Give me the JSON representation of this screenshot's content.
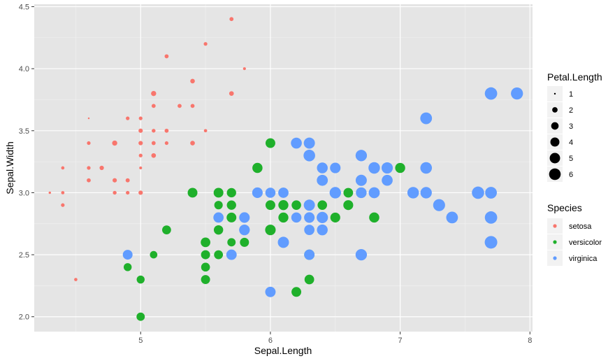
{
  "chart_data": {
    "type": "scatter",
    "xlabel": "Sepal.Length",
    "ylabel": "Sepal.Width",
    "xlim": [
      4.18,
      8.02
    ],
    "ylim": [
      1.88,
      4.52
    ],
    "x_ticks": [
      5,
      6,
      7,
      8
    ],
    "x_tick_labels": [
      "5",
      "6",
      "7",
      "8"
    ],
    "y_ticks": [
      2.0,
      2.5,
      3.0,
      3.5,
      4.0,
      4.5
    ],
    "y_tick_labels": [
      "2.0",
      "2.5",
      "3.0",
      "3.5",
      "4.0",
      "4.5"
    ],
    "grid": true,
    "background": "#e5e5e5",
    "size_legend": {
      "title": "Petal.Length",
      "values": [
        1,
        2,
        3,
        4,
        5,
        6
      ],
      "labels": [
        "1",
        "2",
        "3",
        "4",
        "5",
        "6"
      ]
    },
    "color_legend": {
      "title": "Species",
      "placement": "right"
    },
    "series": [
      {
        "name": "setosa",
        "color": "#f8766d",
        "x": [
          5.1,
          4.9,
          4.7,
          4.6,
          5.0,
          5.4,
          4.6,
          5.0,
          4.4,
          4.9,
          5.4,
          4.8,
          4.8,
          4.3,
          5.8,
          5.7,
          5.4,
          5.1,
          5.7,
          5.1,
          5.4,
          5.1,
          4.6,
          5.1,
          4.8,
          5.0,
          5.0,
          5.2,
          5.2,
          4.7,
          4.8,
          5.4,
          5.2,
          5.5,
          4.9,
          5.0,
          5.5,
          4.9,
          4.4,
          5.1,
          5.0,
          4.5,
          4.4,
          5.0,
          5.1,
          4.8,
          5.1,
          4.6,
          5.3,
          5.0
        ],
        "y": [
          3.5,
          3.0,
          3.2,
          3.1,
          3.6,
          3.9,
          3.4,
          3.4,
          2.9,
          3.1,
          3.7,
          3.4,
          3.0,
          3.0,
          4.0,
          4.4,
          3.9,
          3.5,
          3.8,
          3.8,
          3.4,
          3.7,
          3.6,
          3.3,
          3.4,
          3.0,
          3.4,
          3.5,
          3.4,
          3.2,
          3.1,
          3.4,
          4.1,
          4.2,
          3.1,
          3.2,
          3.5,
          3.6,
          3.0,
          3.4,
          3.5,
          2.3,
          3.2,
          3.5,
          3.8,
          3.0,
          3.8,
          3.2,
          3.7,
          3.3
        ],
        "size": [
          1.4,
          1.4,
          1.3,
          1.5,
          1.4,
          1.7,
          1.4,
          1.5,
          1.4,
          1.5,
          1.5,
          1.6,
          1.4,
          1.1,
          1.2,
          1.5,
          1.3,
          1.4,
          1.7,
          1.5,
          1.7,
          1.5,
          1.0,
          1.7,
          1.9,
          1.6,
          1.6,
          1.5,
          1.4,
          1.6,
          1.6,
          1.5,
          1.5,
          1.4,
          1.5,
          1.2,
          1.3,
          1.4,
          1.3,
          1.5,
          1.3,
          1.3,
          1.3,
          1.6,
          1.9,
          1.4,
          1.6,
          1.4,
          1.5,
          1.4
        ]
      },
      {
        "name": "versicolor",
        "color": "#1fb02b",
        "x": [
          7.0,
          6.4,
          6.9,
          5.5,
          6.5,
          5.7,
          6.3,
          4.9,
          6.6,
          5.2,
          5.0,
          5.9,
          6.0,
          6.1,
          5.6,
          6.7,
          5.6,
          5.8,
          6.2,
          5.6,
          5.9,
          6.1,
          6.3,
          6.1,
          6.4,
          6.6,
          6.8,
          6.7,
          6.0,
          5.7,
          5.5,
          5.5,
          5.8,
          6.0,
          5.4,
          6.0,
          6.7,
          6.3,
          5.6,
          5.5,
          5.5,
          6.1,
          5.8,
          5.0,
          5.6,
          5.7,
          5.7,
          6.2,
          5.1,
          5.7
        ],
        "y": [
          3.2,
          3.2,
          3.1,
          2.3,
          2.8,
          2.8,
          3.3,
          2.4,
          2.9,
          2.7,
          2.0,
          3.0,
          2.2,
          2.9,
          2.9,
          3.1,
          3.0,
          2.7,
          2.2,
          2.5,
          3.2,
          2.8,
          2.5,
          2.8,
          2.9,
          3.0,
          2.8,
          3.0,
          2.9,
          2.6,
          2.4,
          2.4,
          2.7,
          2.7,
          3.0,
          3.4,
          3.1,
          2.3,
          3.0,
          2.5,
          2.6,
          3.0,
          2.6,
          2.3,
          2.7,
          3.0,
          2.9,
          2.9,
          2.5,
          2.8
        ],
        "size": [
          4.7,
          4.5,
          4.9,
          4.0,
          4.6,
          4.5,
          4.7,
          3.3,
          4.6,
          3.9,
          3.5,
          4.2,
          4.0,
          4.7,
          3.6,
          4.4,
          4.5,
          4.1,
          4.5,
          3.9,
          4.8,
          4.0,
          4.9,
          4.7,
          4.3,
          4.4,
          4.8,
          5.0,
          4.5,
          3.5,
          3.8,
          3.7,
          3.9,
          5.1,
          4.5,
          4.5,
          4.7,
          4.4,
          4.1,
          4.0,
          4.4,
          4.6,
          4.0,
          3.3,
          4.2,
          4.2,
          4.2,
          4.3,
          3.0,
          4.1
        ]
      },
      {
        "name": "virginica",
        "color": "#619cff",
        "x": [
          6.3,
          5.8,
          7.1,
          6.3,
          6.5,
          7.6,
          4.9,
          7.3,
          6.7,
          7.2,
          6.5,
          6.4,
          6.8,
          5.7,
          5.8,
          6.4,
          6.5,
          7.7,
          7.7,
          6.0,
          6.9,
          5.6,
          7.7,
          6.3,
          6.7,
          7.2,
          6.2,
          6.1,
          6.4,
          7.2,
          7.4,
          7.9,
          6.4,
          6.3,
          6.1,
          7.7,
          6.3,
          6.4,
          6.0,
          6.9,
          6.7,
          6.9,
          5.8,
          6.8,
          6.7,
          6.7,
          6.3,
          6.5,
          6.2,
          5.9
        ],
        "y": [
          3.3,
          2.7,
          3.0,
          2.9,
          3.0,
          3.0,
          2.5,
          2.9,
          2.5,
          3.6,
          3.2,
          2.7,
          3.0,
          2.5,
          2.8,
          3.2,
          3.0,
          3.8,
          2.6,
          2.2,
          3.2,
          2.8,
          2.8,
          2.7,
          3.3,
          3.2,
          2.8,
          3.0,
          2.8,
          3.0,
          2.8,
          3.8,
          2.8,
          2.8,
          2.6,
          3.0,
          3.4,
          3.1,
          3.0,
          3.1,
          3.1,
          3.1,
          2.7,
          3.2,
          3.3,
          3.0,
          2.5,
          3.0,
          3.4,
          3.0
        ],
        "size": [
          6.0,
          5.1,
          5.9,
          5.6,
          5.8,
          6.6,
          4.5,
          6.3,
          5.8,
          6.1,
          5.1,
          5.3,
          5.5,
          5.0,
          5.1,
          5.3,
          5.5,
          6.7,
          6.9,
          5.0,
          5.7,
          4.9,
          6.7,
          4.9,
          5.7,
          6.0,
          4.8,
          4.9,
          5.6,
          5.8,
          6.1,
          6.4,
          5.6,
          5.1,
          5.6,
          6.1,
          5.6,
          5.5,
          4.8,
          5.4,
          5.6,
          5.1,
          5.1,
          5.9,
          5.7,
          5.2,
          5.0,
          5.2,
          5.4,
          5.1
        ]
      }
    ]
  }
}
